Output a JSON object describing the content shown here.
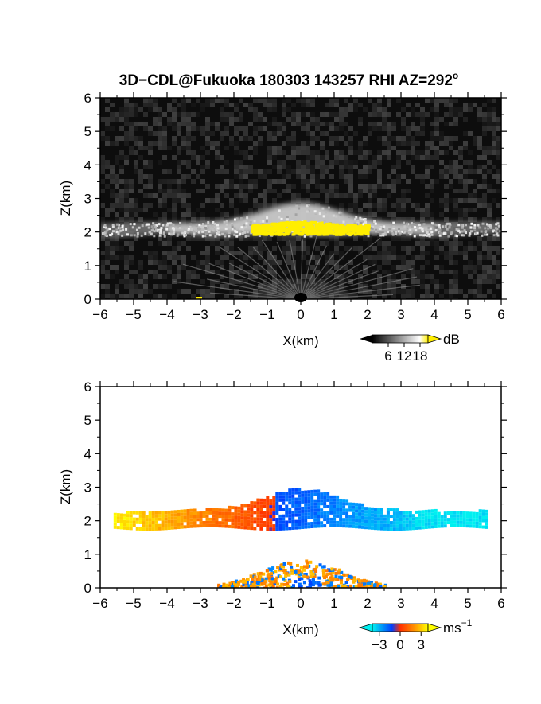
{
  "title": "3D−CDL@Fukuoka 180303 143257 RHI AZ=292°",
  "title_main": "3D−CDL@Fukuoka 180303 143257 RHI AZ=292",
  "title_degree": "o",
  "chart_data": [
    {
      "type": "heatmap",
      "name": "reflectivity",
      "xlabel": "X(km)",
      "ylabel": "Z(km)",
      "xlim": [
        -6,
        6
      ],
      "ylim": [
        0,
        6
      ],
      "x_ticks": [
        "−6",
        "−5",
        "−4",
        "−3",
        "−2",
        "−1",
        "0",
        "1",
        "2",
        "3",
        "4",
        "5",
        "6"
      ],
      "y_ticks": [
        "0",
        "1",
        "2",
        "3",
        "4",
        "5",
        "6"
      ],
      "colorbar": {
        "unit": "dB",
        "ticks": [
          "6",
          "12",
          "18"
        ],
        "tick_values": [
          6,
          12,
          18
        ],
        "range": [
          0,
          21
        ],
        "colors": [
          "#000000",
          "#ffffff",
          "#ffee00"
        ]
      },
      "background_color": "#0d0d0d",
      "layer": {
        "x_start": -6,
        "x_end": 6,
        "base_km": 1.9,
        "top_km": 2.3,
        "peak_top_km": 2.9,
        "peak_x": 0
      },
      "core": {
        "x_start": -1.5,
        "x_end": 2.0,
        "z_bottom": 1.95,
        "z_top": 2.35,
        "color": "#ffee00"
      }
    },
    {
      "type": "heatmap",
      "name": "doppler_velocity",
      "xlabel": "X(km)",
      "ylabel": "Z(km)",
      "xlim": [
        -6,
        6
      ],
      "ylim": [
        0,
        6
      ],
      "x_ticks": [
        "−6",
        "−5",
        "−4",
        "−3",
        "−2",
        "−1",
        "0",
        "1",
        "2",
        "3",
        "4",
        "5",
        "6"
      ],
      "y_ticks": [
        "0",
        "1",
        "2",
        "3",
        "4",
        "5",
        "6"
      ],
      "colorbar": {
        "unit": "ms",
        "unit_exponent": "−1",
        "ticks": [
          "−3",
          "0",
          "3"
        ],
        "tick_values": [
          -3,
          0,
          3
        ],
        "range": [
          -4,
          4
        ],
        "colors": [
          "#00f0f0",
          "#0040ff",
          "#ff3000",
          "#ffff00"
        ]
      },
      "layer": {
        "x_start": -5.6,
        "x_end": 5.6,
        "base_km": 1.85,
        "top_km": 2.35,
        "peak_top_km": 3.0,
        "peak_x": 0
      },
      "low_echo": {
        "x_start": -2.5,
        "x_end": 2.5,
        "z_bottom": 0,
        "z_top": 0.85
      }
    }
  ]
}
